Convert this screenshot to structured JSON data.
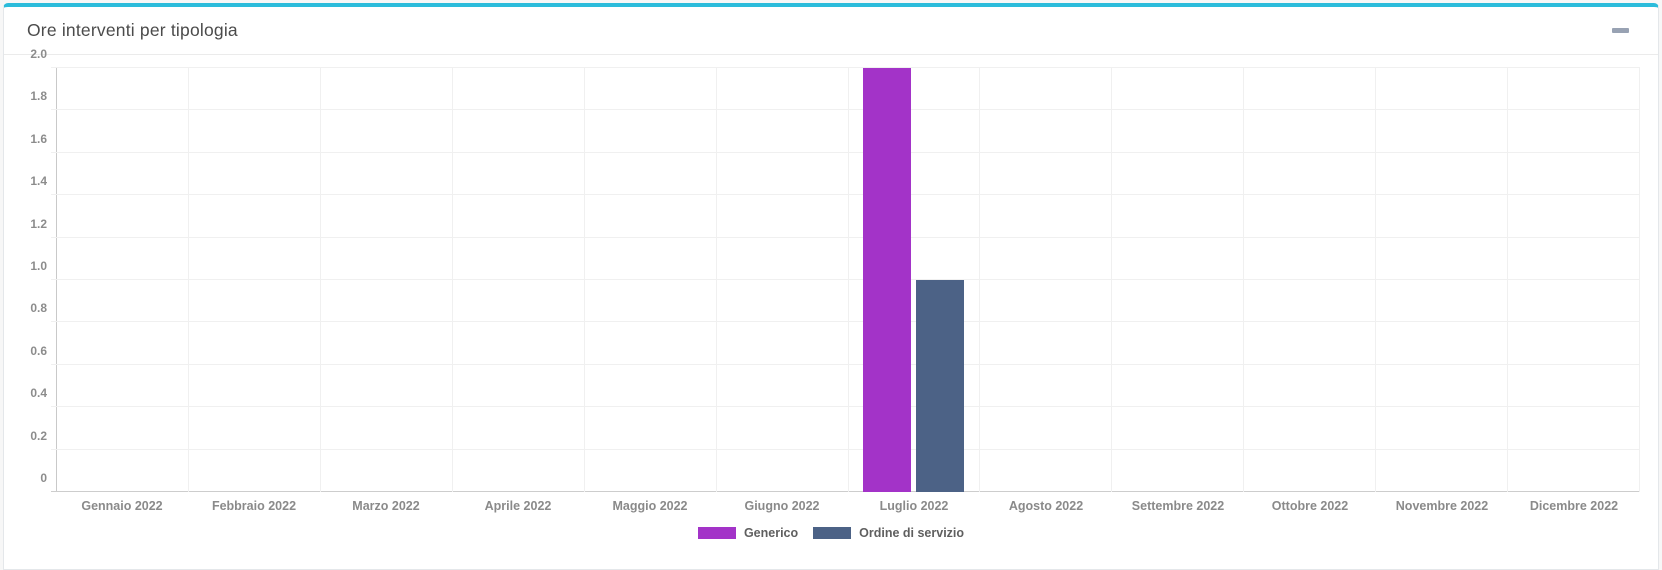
{
  "header": {
    "title": "Ore interventi per tipologia",
    "minimize_icon": "minus"
  },
  "colors": {
    "panel_top_border": "#2cbcdb",
    "series_generico": "#a333c8",
    "series_ordine": "#4c6286"
  },
  "chart_data": {
    "type": "bar",
    "title": "Ore interventi per tipologia",
    "xlabel": "",
    "ylabel": "",
    "ylim": [
      0,
      2
    ],
    "grid": true,
    "legend_position": "bottom",
    "categories": [
      "Gennaio 2022",
      "Febbraio 2022",
      "Marzo 2022",
      "Aprile 2022",
      "Maggio 2022",
      "Giugno 2022",
      "Luglio 2022",
      "Agosto 2022",
      "Settembre 2022",
      "Ottobre 2022",
      "Novembre 2022",
      "Dicembre 2022"
    ],
    "series": [
      {
        "name": "Generico",
        "color": "#a333c8",
        "values": [
          0,
          0,
          0,
          0,
          0,
          0,
          2,
          0,
          0,
          0,
          0,
          0
        ]
      },
      {
        "name": "Ordine di servizio",
        "color": "#4c6286",
        "values": [
          0,
          0,
          0,
          0,
          0,
          0,
          1,
          0,
          0,
          0,
          0,
          0
        ]
      }
    ],
    "yticks": [
      {
        "label": "2.0",
        "value": 2.0
      },
      {
        "label": "1.8",
        "value": 1.8
      },
      {
        "label": "1.6",
        "value": 1.6
      },
      {
        "label": "1.4",
        "value": 1.4
      },
      {
        "label": "1.2",
        "value": 1.2
      },
      {
        "label": "1.0",
        "value": 1.0
      },
      {
        "label": "0.8",
        "value": 0.8
      },
      {
        "label": "0.6",
        "value": 0.6
      },
      {
        "label": "0.4",
        "value": 0.4
      },
      {
        "label": "0.2",
        "value": 0.2
      },
      {
        "label": "0",
        "value": 0
      }
    ]
  }
}
